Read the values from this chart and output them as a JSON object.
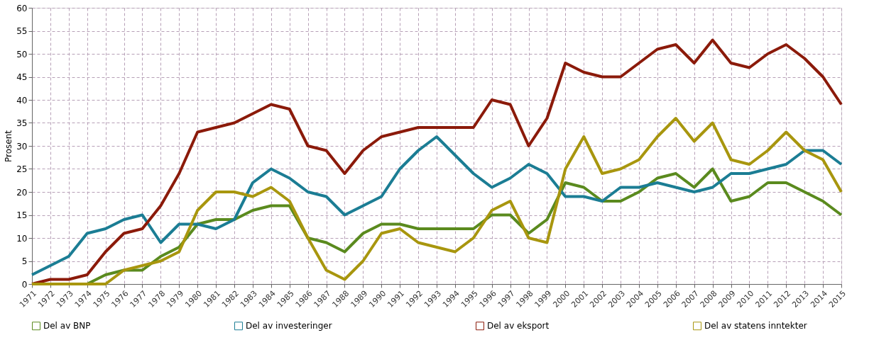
{
  "chart_data": {
    "type": "line",
    "ylabel": "Prosent",
    "categories": [
      "1971",
      "1972",
      "1973",
      "1974",
      "1975",
      "1976",
      "1977",
      "1978",
      "1979",
      "1980",
      "1981",
      "1982",
      "1983",
      "1984",
      "1985",
      "1986",
      "1987",
      "1988",
      "1989",
      "1990",
      "1991",
      "1992",
      "1993",
      "1994",
      "1995",
      "1996",
      "1997",
      "1998",
      "1999",
      "2000",
      "2001",
      "2002",
      "2003",
      "2004",
      "2005",
      "2006",
      "2007",
      "2008",
      "2009",
      "2010",
      "2011",
      "2012",
      "2013",
      "2014",
      "2015"
    ],
    "series": [
      {
        "name": "Del av BNP",
        "color": "#5a8a1e",
        "values": [
          null,
          null,
          0,
          0,
          2,
          3,
          3,
          6,
          8,
          13,
          14,
          14,
          16,
          17,
          17,
          10,
          9,
          7,
          11,
          13,
          13,
          12,
          12,
          12,
          12,
          15,
          15,
          11,
          14,
          22,
          21,
          18,
          18,
          20,
          23,
          24,
          21,
          25,
          18,
          19,
          22,
          22,
          20,
          18,
          15
        ]
      },
      {
        "name": "Del av investeringer",
        "color": "#1b7d94",
        "values": [
          2,
          4,
          6,
          11,
          12,
          14,
          15,
          9,
          13,
          13,
          12,
          14,
          22,
          25,
          23,
          20,
          19,
          15,
          17,
          19,
          25,
          29,
          32,
          28,
          24,
          21,
          23,
          26,
          24,
          19,
          19,
          18,
          21,
          21,
          22,
          21,
          20,
          21,
          24,
          24,
          25,
          26,
          29,
          29,
          26
        ]
      },
      {
        "name": "Del av eksport",
        "color": "#8b1a0a",
        "values": [
          0,
          1,
          1,
          2,
          7,
          11,
          12,
          17,
          24,
          33,
          34,
          35,
          37,
          39,
          38,
          30,
          29,
          24,
          29,
          32,
          33,
          34,
          34,
          34,
          34,
          40,
          39,
          30,
          36,
          48,
          46,
          45,
          45,
          48,
          51,
          52,
          48,
          53,
          48,
          47,
          50,
          52,
          49,
          45,
          39
        ]
      },
      {
        "name": "Del av statens inntekter",
        "color": "#a8960e",
        "values": [
          0,
          0,
          0,
          0,
          0,
          3,
          4,
          5,
          7,
          16,
          20,
          20,
          19,
          21,
          18,
          10,
          3,
          1,
          5,
          11,
          12,
          9,
          8,
          7,
          10,
          16,
          18,
          10,
          9,
          25,
          32,
          24,
          25,
          27,
          32,
          36,
          31,
          35,
          27,
          26,
          29,
          33,
          29,
          27,
          20
        ]
      }
    ],
    "ylim": [
      0,
      60
    ],
    "yticks": [
      0,
      5,
      10,
      15,
      20,
      25,
      30,
      35,
      40,
      45,
      50,
      55,
      60
    ],
    "grid": true,
    "legend": "bottom",
    "marker": "none",
    "line_style": "solid"
  }
}
